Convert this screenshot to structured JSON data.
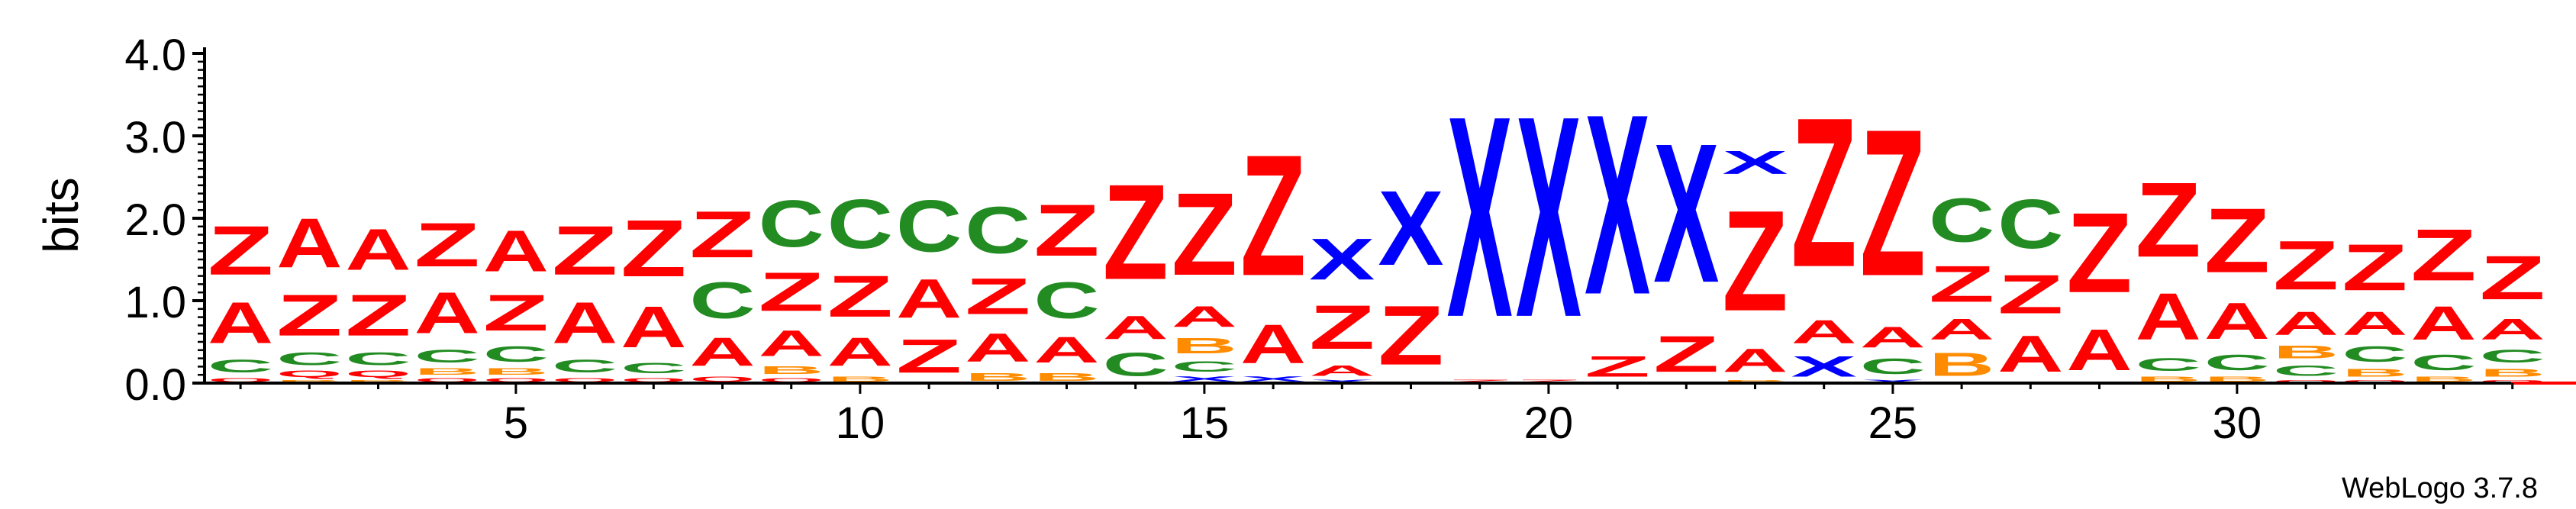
{
  "chart_data": {
    "type": "sequence-logo",
    "ylabel": "bits",
    "ylim": [
      0,
      4.0
    ],
    "yticks": [
      "0.0",
      "1.0",
      "2.0",
      "3.0",
      "4.0"
    ],
    "xticks": [
      {
        "pos": 5,
        "label": "5"
      },
      {
        "pos": 10,
        "label": "10"
      },
      {
        "pos": 15,
        "label": "15"
      },
      {
        "pos": 20,
        "label": "20"
      },
      {
        "pos": 25,
        "label": "25"
      },
      {
        "pos": 30,
        "label": "30"
      }
    ],
    "colors": {
      "Z": "#ff0000",
      "A": "#ff0000",
      "Q": "#ff0000",
      "X": "#0000ff",
      "C": "#228b22",
      "B": "#ff8c00"
    },
    "positions": [
      {
        "pos": 1,
        "stack": [
          [
            "Q",
            0.08
          ],
          [
            "C",
            0.25
          ],
          [
            "A",
            0.8
          ],
          [
            "Z",
            0.95
          ]
        ]
      },
      {
        "pos": 2,
        "stack": [
          [
            "B",
            0.05
          ],
          [
            "Q",
            0.12
          ],
          [
            "C",
            0.25
          ],
          [
            "Z",
            0.8
          ],
          [
            "A",
            0.95
          ]
        ]
      },
      {
        "pos": 3,
        "stack": [
          [
            "B",
            0.05
          ],
          [
            "Q",
            0.12
          ],
          [
            "C",
            0.25
          ],
          [
            "Z",
            0.8
          ],
          [
            "A",
            0.8
          ]
        ]
      },
      {
        "pos": 4,
        "stack": [
          [
            "Q",
            0.08
          ],
          [
            "B",
            0.12
          ],
          [
            "C",
            0.25
          ],
          [
            "A",
            0.8
          ],
          [
            "Z",
            0.85
          ]
        ]
      },
      {
        "pos": 5,
        "stack": [
          [
            "Q",
            0.08
          ],
          [
            "B",
            0.12
          ],
          [
            "C",
            0.3
          ],
          [
            "Z",
            0.7
          ],
          [
            "A",
            0.8
          ]
        ]
      },
      {
        "pos": 6,
        "stack": [
          [
            "Q",
            0.08
          ],
          [
            "C",
            0.25
          ],
          [
            "A",
            0.8
          ],
          [
            "Z",
            0.95
          ]
        ]
      },
      {
        "pos": 7,
        "stack": [
          [
            "Q",
            0.08
          ],
          [
            "C",
            0.2
          ],
          [
            "A",
            0.8
          ],
          [
            "Z",
            1.1
          ]
        ]
      },
      {
        "pos": 8,
        "stack": [
          [
            "Q",
            0.1
          ],
          [
            "A",
            0.55
          ],
          [
            "C",
            0.7
          ],
          [
            "Z",
            0.9
          ]
        ]
      },
      {
        "pos": 9,
        "stack": [
          [
            "Q",
            0.08
          ],
          [
            "B",
            0.15
          ],
          [
            "A",
            0.5
          ],
          [
            "Z",
            0.75
          ],
          [
            "C",
            0.9
          ]
        ]
      },
      {
        "pos": 10,
        "stack": [
          [
            "B",
            0.1
          ],
          [
            "A",
            0.55
          ],
          [
            "Z",
            0.8
          ],
          [
            "C",
            0.95
          ]
        ]
      },
      {
        "pos": 11,
        "stack": [
          [
            "Z",
            0.65
          ],
          [
            "A",
            0.75
          ],
          [
            "C",
            1.0
          ]
        ]
      },
      {
        "pos": 12,
        "stack": [
          [
            "B",
            0.15
          ],
          [
            "A",
            0.55
          ],
          [
            "Z",
            0.7
          ],
          [
            "C",
            0.9
          ]
        ]
      },
      {
        "pos": 13,
        "stack": [
          [
            "B",
            0.15
          ],
          [
            "A",
            0.5
          ],
          [
            "C",
            0.7
          ],
          [
            "Z",
            1.0
          ]
        ]
      },
      {
        "pos": 14,
        "stack": [
          [
            "C",
            0.45
          ],
          [
            "A",
            0.45
          ],
          [
            "Z",
            1.85
          ]
        ]
      },
      {
        "pos": 15,
        "stack": [
          [
            "X",
            0.1
          ],
          [
            "C",
            0.2
          ],
          [
            "B",
            0.3
          ],
          [
            "A",
            0.4
          ],
          [
            "Z",
            1.6
          ]
        ]
      },
      {
        "pos": 16,
        "stack": [
          [
            "X",
            0.1
          ],
          [
            "A",
            0.75
          ],
          [
            "Z",
            2.35
          ]
        ]
      },
      {
        "pos": 17,
        "stack": [
          [
            "X",
            0.05
          ],
          [
            "A",
            0.2
          ],
          [
            "Z",
            0.85
          ],
          [
            "X",
            0.8
          ]
        ]
      },
      {
        "pos": 18,
        "stack": [
          [
            "Z",
            1.15
          ],
          [
            "X",
            1.45
          ]
        ]
      },
      {
        "pos": 19,
        "stack": [
          [
            "Z",
            0.05
          ],
          [
            "X",
            3.9
          ]
        ]
      },
      {
        "pos": 20,
        "stack": [
          [
            "Z",
            0.05
          ],
          [
            "X",
            3.9
          ]
        ]
      },
      {
        "pos": 21,
        "stack": [
          [
            "Z",
            0.4
          ],
          [
            "X",
            3.5
          ]
        ]
      },
      {
        "pos": 22,
        "stack": [
          [
            "Z",
            0.7
          ],
          [
            "X",
            2.7
          ]
        ]
      },
      {
        "pos": 23,
        "stack": [
          [
            "B",
            0.05
          ],
          [
            "A",
            0.45
          ],
          [
            "Z",
            1.95
          ],
          [
            "X",
            0.45
          ]
        ]
      },
      {
        "pos": 24,
        "stack": [
          [
            "X",
            0.4
          ],
          [
            "A",
            0.45
          ],
          [
            "Z",
            2.9
          ]
        ]
      },
      {
        "pos": 25,
        "stack": [
          [
            "X",
            0.05
          ],
          [
            "C",
            0.3
          ],
          [
            "A",
            0.4
          ],
          [
            "Z",
            2.85
          ]
        ]
      },
      {
        "pos": 26,
        "stack": [
          [
            "B",
            0.45
          ],
          [
            "A",
            0.4
          ],
          [
            "Z",
            0.7
          ],
          [
            "C",
            0.85
          ]
        ]
      },
      {
        "pos": 27,
        "stack": [
          [
            "A",
            0.7
          ],
          [
            "Z",
            0.75
          ],
          [
            "C",
            0.95
          ]
        ]
      },
      {
        "pos": 28,
        "stack": [
          [
            "A",
            0.8
          ],
          [
            "Z",
            1.55
          ]
        ]
      },
      {
        "pos": 29,
        "stack": [
          [
            "B",
            0.1
          ],
          [
            "C",
            0.25
          ],
          [
            "A",
            0.9
          ],
          [
            "Z",
            1.45
          ]
        ]
      },
      {
        "pos": 30,
        "stack": [
          [
            "B",
            0.1
          ],
          [
            "C",
            0.3
          ],
          [
            "A",
            0.7
          ],
          [
            "Z",
            1.25
          ]
        ]
      },
      {
        "pos": 31,
        "stack": [
          [
            "Q",
            0.05
          ],
          [
            "C",
            0.2
          ],
          [
            "B",
            0.25
          ],
          [
            "A",
            0.45
          ],
          [
            "Z",
            0.95
          ]
        ]
      },
      {
        "pos": 32,
        "stack": [
          [
            "Q",
            0.05
          ],
          [
            "B",
            0.15
          ],
          [
            "C",
            0.3
          ],
          [
            "A",
            0.45
          ],
          [
            "Z",
            0.9
          ]
        ]
      },
      {
        "pos": 33,
        "stack": [
          [
            "B",
            0.1
          ],
          [
            "C",
            0.3
          ],
          [
            "A",
            0.65
          ],
          [
            "Z",
            1.0
          ]
        ]
      },
      {
        "pos": 34,
        "stack": [
          [
            "Q",
            0.05
          ],
          [
            "B",
            0.15
          ],
          [
            "C",
            0.25
          ],
          [
            "A",
            0.4
          ],
          [
            "Z",
            0.85
          ]
        ]
      }
    ]
  },
  "footer": {
    "credit": "WebLogo 3.7.8"
  }
}
